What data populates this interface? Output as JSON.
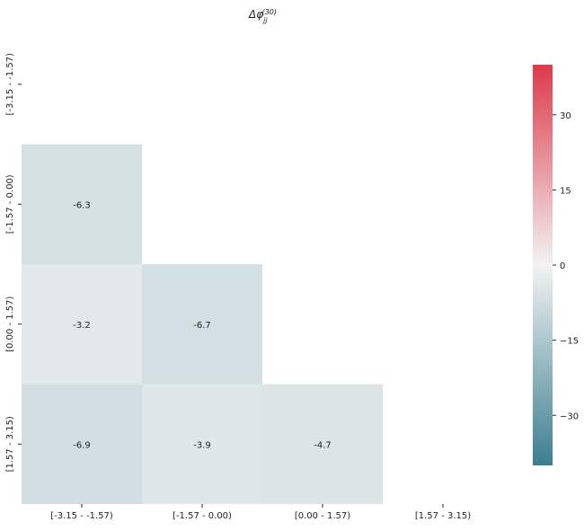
{
  "chart_data": {
    "type": "heatmap",
    "title": {
      "base": "Δφ",
      "subscript": "jj",
      "superscript": "(30)"
    },
    "categories": [
      "[-3.15 - -1.57)",
      "[-1.57 - 0.00)",
      "[0.00 - 1.57)",
      "[1.57 - 3.15)"
    ],
    "mask": "lower-triangle",
    "cells": [
      {
        "row": 1,
        "col": 0,
        "value": -6.3,
        "label": "-6.3"
      },
      {
        "row": 2,
        "col": 0,
        "value": -3.2,
        "label": "-3.2"
      },
      {
        "row": 2,
        "col": 1,
        "value": -6.7,
        "label": "-6.7"
      },
      {
        "row": 3,
        "col": 0,
        "value": -6.9,
        "label": "-6.9"
      },
      {
        "row": 3,
        "col": 1,
        "value": -3.9,
        "label": "-3.9"
      },
      {
        "row": 3,
        "col": 2,
        "value": -4.7,
        "label": "-4.7"
      }
    ],
    "colorbar": {
      "vmin": -40,
      "vmax": 40,
      "ticks": [
        30,
        15,
        0,
        -15,
        -30
      ],
      "tick_labels": [
        "30",
        "15",
        "0",
        "−15",
        "−30"
      ],
      "colors": {
        "low": "#3b7f90",
        "mid": "#f2f2f2",
        "high": "#dd3a4a"
      }
    }
  }
}
